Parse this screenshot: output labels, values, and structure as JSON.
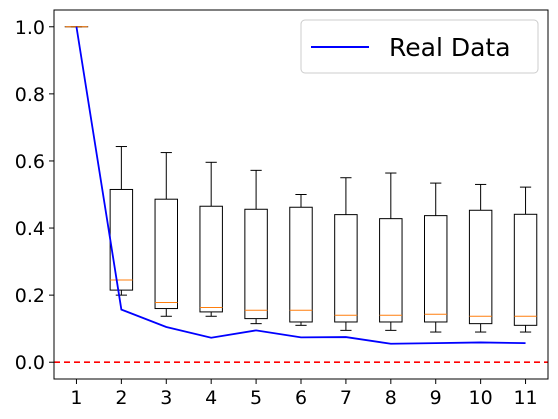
{
  "chart_data": {
    "type": "box",
    "title": "",
    "xlabel": "",
    "ylabel": "",
    "categories": [
      "1",
      "2",
      "3",
      "4",
      "5",
      "6",
      "7",
      "8",
      "9",
      "10",
      "11"
    ],
    "x_ticks": [
      "1",
      "2",
      "3",
      "4",
      "5",
      "6",
      "7",
      "8",
      "9",
      "10",
      "11"
    ],
    "y_ticks": [
      "0.0",
      "0.2",
      "0.4",
      "0.6",
      "0.8",
      "1.0"
    ],
    "ylim": [
      -0.05,
      1.05
    ],
    "grid": false,
    "boxes": [
      {
        "x": 1,
        "whisker_low": 1.0,
        "q1": 1.0,
        "median": 1.0,
        "q3": 1.0,
        "whisker_high": 1.0
      },
      {
        "x": 2,
        "whisker_low": 0.2,
        "q1": 0.215,
        "median": 0.245,
        "q3": 0.515,
        "whisker_high": 0.643
      },
      {
        "x": 3,
        "whisker_low": 0.137,
        "q1": 0.16,
        "median": 0.178,
        "q3": 0.486,
        "whisker_high": 0.625
      },
      {
        "x": 4,
        "whisker_low": 0.137,
        "q1": 0.15,
        "median": 0.163,
        "q3": 0.465,
        "whisker_high": 0.596
      },
      {
        "x": 5,
        "whisker_low": 0.115,
        "q1": 0.13,
        "median": 0.155,
        "q3": 0.456,
        "whisker_high": 0.572
      },
      {
        "x": 6,
        "whisker_low": 0.11,
        "q1": 0.12,
        "median": 0.155,
        "q3": 0.462,
        "whisker_high": 0.5
      },
      {
        "x": 7,
        "whisker_low": 0.095,
        "q1": 0.12,
        "median": 0.14,
        "q3": 0.44,
        "whisker_high": 0.55
      },
      {
        "x": 8,
        "whisker_low": 0.095,
        "q1": 0.12,
        "median": 0.14,
        "q3": 0.428,
        "whisker_high": 0.564
      },
      {
        "x": 9,
        "whisker_low": 0.09,
        "q1": 0.12,
        "median": 0.143,
        "q3": 0.437,
        "whisker_high": 0.534
      },
      {
        "x": 10,
        "whisker_low": 0.09,
        "q1": 0.115,
        "median": 0.137,
        "q3": 0.453,
        "whisker_high": 0.53
      },
      {
        "x": 11,
        "whisker_low": 0.09,
        "q1": 0.11,
        "median": 0.137,
        "q3": 0.441,
        "whisker_high": 0.522
      }
    ],
    "series": [
      {
        "name": "Real Data",
        "color": "#0000ff",
        "x": [
          1,
          2,
          3,
          4,
          5,
          6,
          7,
          8,
          9,
          10,
          11
        ],
        "values": [
          1.0,
          0.157,
          0.105,
          0.073,
          0.095,
          0.074,
          0.075,
          0.055,
          0.057,
          0.059,
          0.057
        ]
      }
    ],
    "reference_line": {
      "y": 0.0,
      "color": "#ff0000",
      "style": "dashed"
    },
    "box_color": "#000000",
    "median_color": "#ff7f0e",
    "legend": {
      "position": "top-right",
      "entries": [
        "Real Data"
      ]
    }
  }
}
